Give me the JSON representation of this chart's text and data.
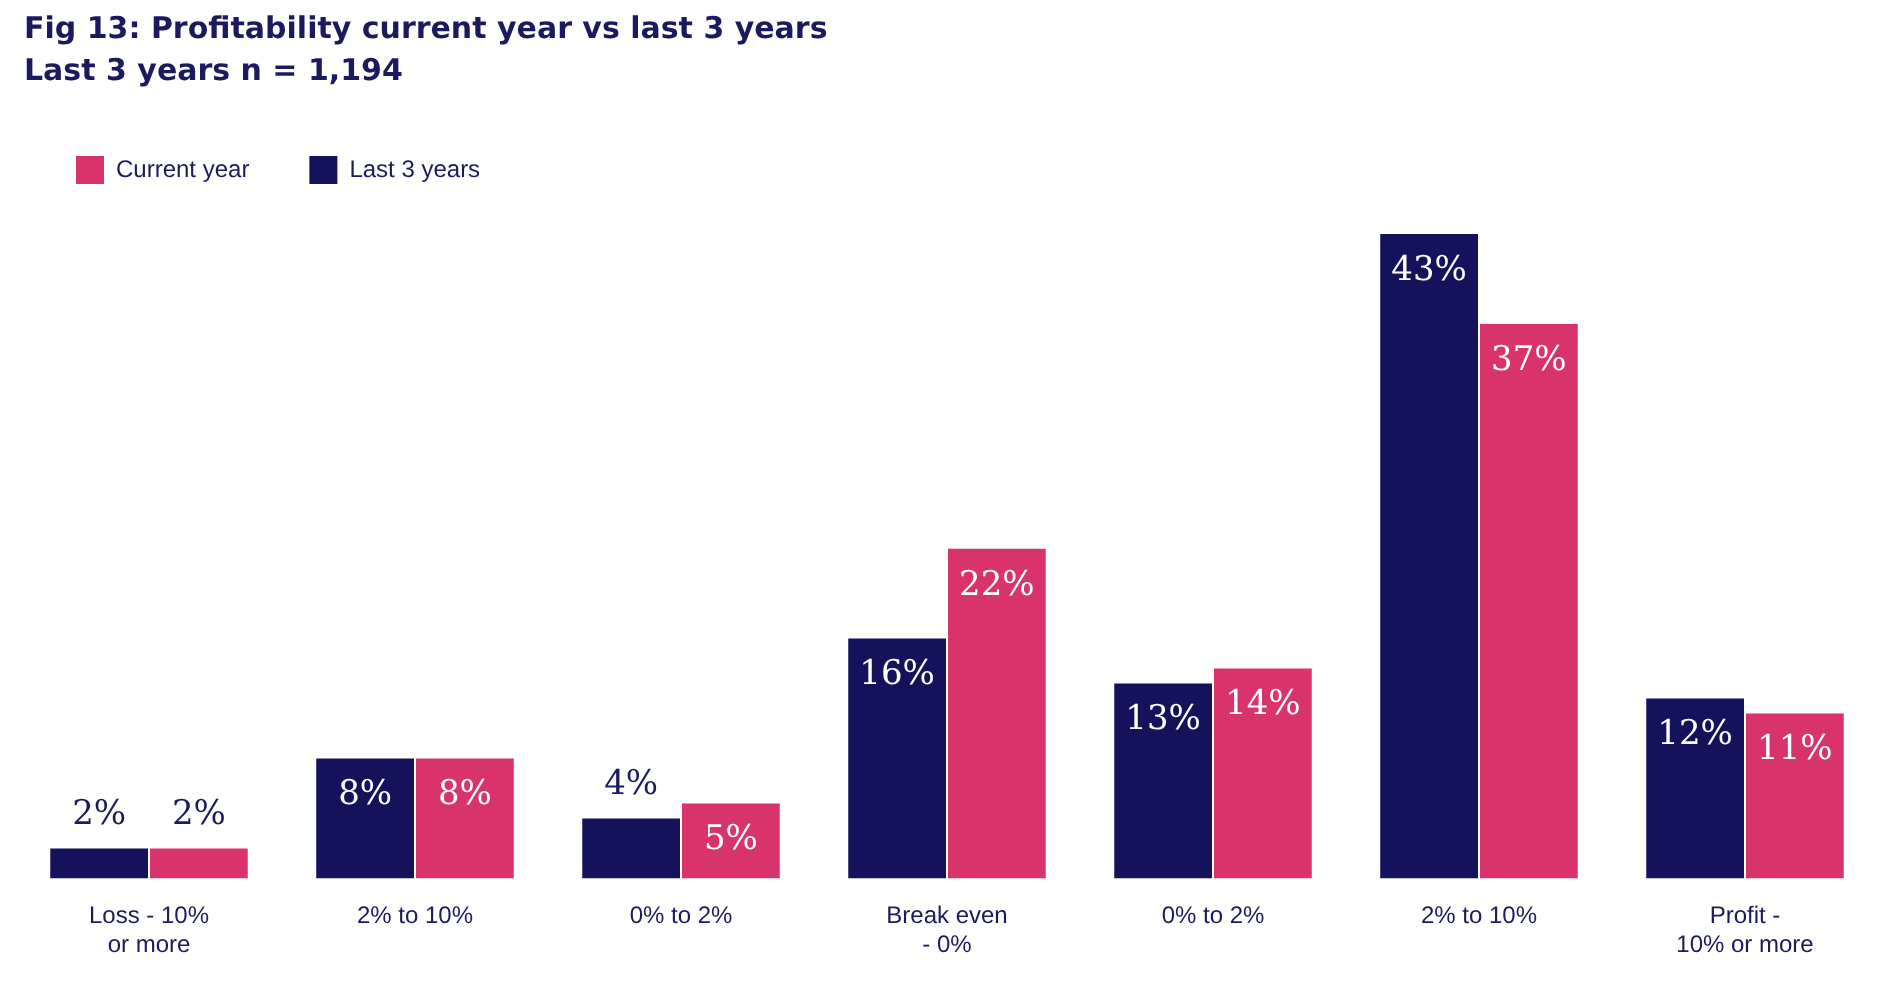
{
  "chart_data": {
    "type": "bar",
    "title": "Fig 13: Profitability current year vs last 3 years",
    "subtitle": "Last 3 years n = 1,194",
    "categories": [
      "Loss - 10% or more",
      "2% to 10%",
      "0% to 2%",
      "Break even - 0%",
      "0% to 2%",
      "2% to 10%",
      "Profit - 10% or more"
    ],
    "series": [
      {
        "name": "Last 3 years",
        "color": "#14125a",
        "values": [
          2,
          8,
          4,
          16,
          13,
          43,
          12
        ],
        "value_labels": [
          "2%",
          "8%",
          "4%",
          "16%",
          "13%",
          "43%",
          "12%"
        ]
      },
      {
        "name": "Current year",
        "color": "#d9336b",
        "values": [
          2,
          8,
          5,
          22,
          14,
          37,
          11
        ],
        "value_labels": [
          "2%",
          "8%",
          "5%",
          "22%",
          "14%",
          "37%",
          "11%"
        ]
      }
    ],
    "legend": "top left",
    "grid": false,
    "tick_labels": "x"
  }
}
